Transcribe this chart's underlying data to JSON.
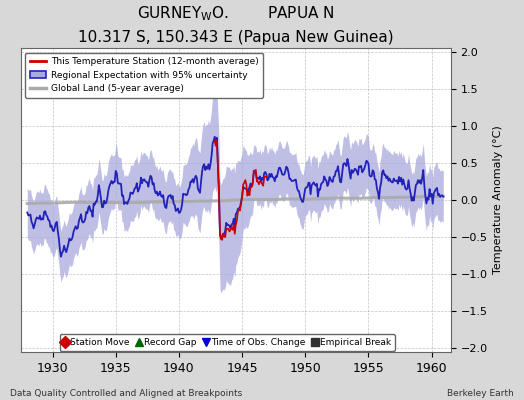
{
  "subtitle": "10.317 S, 150.343 E (Papua New Guinea)",
  "ylabel": "Temperature Anomaly (°C)",
  "xlabel_left": "Data Quality Controlled and Aligned at Breakpoints",
  "xlabel_right": "Berkeley Earth",
  "xlim": [
    1927.5,
    1961.5
  ],
  "ylim": [
    -2.05,
    2.05
  ],
  "yticks": [
    -2,
    -1.5,
    -1,
    -0.5,
    0,
    0.5,
    1,
    1.5,
    2
  ],
  "xticks": [
    1930,
    1935,
    1940,
    1945,
    1950,
    1955,
    1960
  ],
  "bg_color": "#d8d8d8",
  "plot_bg_color": "#ffffff",
  "regional_color": "#2222bb",
  "regional_fill_color": "#aaaadd",
  "station_color": "#cc0000",
  "global_color": "#aaaaaa",
  "legend_entries": [
    "This Temperature Station (12-month average)",
    "Regional Expectation with 95% uncertainty",
    "Global Land (5-year average)"
  ],
  "marker_legend": [
    {
      "label": "Station Move",
      "marker": "D",
      "color": "#cc0000"
    },
    {
      "label": "Record Gap",
      "marker": "^",
      "color": "#006600"
    },
    {
      "label": "Time of Obs. Change",
      "marker": "v",
      "color": "#0000cc"
    },
    {
      "label": "Empirical Break",
      "marker": "s",
      "color": "#333333"
    }
  ]
}
